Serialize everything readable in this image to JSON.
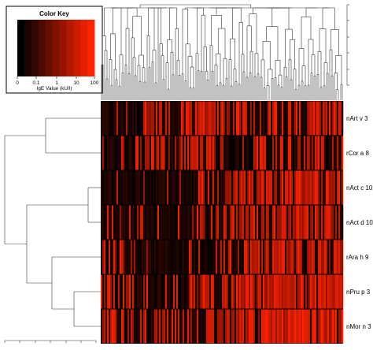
{
  "color_key": {
    "title": "Color Key",
    "axis_label": "IgE Value (kU/l)",
    "ticks": [
      "0",
      "0.1",
      "1",
      "10",
      "100"
    ],
    "gradient": [
      "#000000",
      "#ff0000"
    ]
  },
  "rows": [
    {
      "label": "nArt v 3",
      "profile": [
        0.05,
        0.25,
        0.85,
        0.05,
        0.9,
        0.55,
        0.3,
        0.55,
        0.5,
        0.7
      ]
    },
    {
      "label": "rCor a 8",
      "profile": [
        0.05,
        0.15,
        0.7,
        0.1,
        0.95,
        0.3,
        0.35,
        0.55,
        0.45,
        0.6
      ]
    },
    {
      "label": "nAct c 10",
      "profile": [
        0.1,
        0.1,
        0.15,
        0.05,
        0.1,
        0.55,
        0.8,
        0.85,
        0.8,
        0.85
      ]
    },
    {
      "label": "nAct d 10",
      "profile": [
        0.1,
        0.15,
        0.3,
        0.05,
        0.15,
        0.55,
        0.75,
        0.8,
        0.75,
        0.8
      ]
    },
    {
      "label": "rAra h 9",
      "profile": [
        0.1,
        0.2,
        0.15,
        0.05,
        0.3,
        0.6,
        0.75,
        0.8,
        0.7,
        0.75
      ]
    },
    {
      "label": "nPru p 3",
      "profile": [
        0.6,
        0.55,
        0.3,
        0.1,
        0.55,
        0.8,
        0.85,
        0.9,
        0.85,
        0.85
      ]
    },
    {
      "label": "nMor n 3",
      "profile": [
        0.45,
        0.5,
        0.35,
        0.1,
        0.5,
        0.8,
        0.85,
        0.85,
        0.8,
        0.85
      ]
    }
  ],
  "colors": {
    "low": "#000000",
    "high": "#ff2200",
    "line": "#333333"
  }
}
